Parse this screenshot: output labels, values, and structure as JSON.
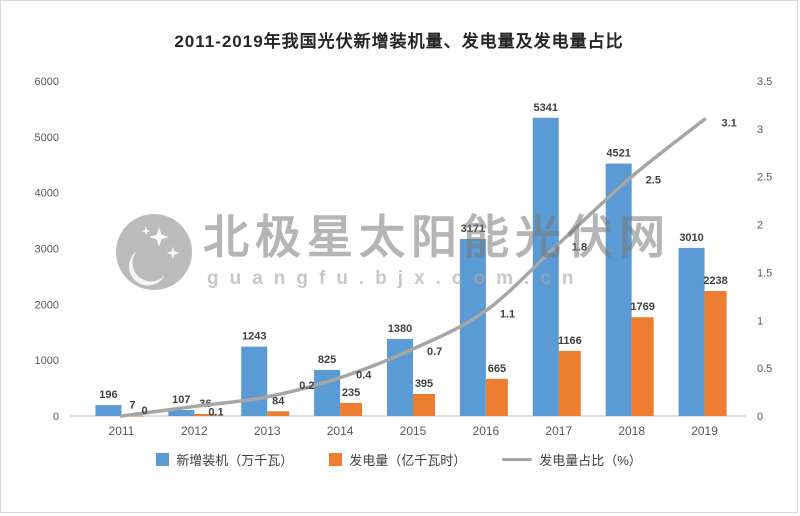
{
  "title": "2011-2019年我国光伏新增装机量、发电量及发电量占比",
  "watermark": {
    "line1": "北极星太阳能光伏网",
    "line2": "guangfu.bjx.com.cn"
  },
  "chart_data": {
    "type": "combo_bar_line",
    "title": "2011-2019年我国光伏新增装机量、发电量及发电量占比",
    "categories": [
      "2011",
      "2012",
      "2013",
      "2014",
      "2015",
      "2016",
      "2017",
      "2018",
      "2019"
    ],
    "series": [
      {
        "name": "新增装机（万千瓦）",
        "type": "bar",
        "axis": "left",
        "color": "#5B9BD5",
        "values": [
          196,
          107,
          1243,
          825,
          1380,
          3171,
          5341,
          4521,
          3010
        ]
      },
      {
        "name": "发电量（亿千瓦时）",
        "type": "bar",
        "axis": "left",
        "color": "#ED7D31",
        "values": [
          7,
          36,
          84,
          235,
          395,
          665,
          1166,
          1769,
          2238
        ]
      },
      {
        "name": "发电量占比（%）",
        "type": "line",
        "axis": "right",
        "color": "#A6A6A6",
        "values": [
          0,
          0.1,
          0.2,
          0.4,
          0.7,
          1.1,
          1.8,
          2.5,
          3.1
        ]
      }
    ],
    "left_axis": {
      "min": 0,
      "max": 6000,
      "step": 1000
    },
    "right_axis": {
      "min": 0,
      "max": 3.5,
      "step": 0.5
    },
    "grid": false,
    "legend_position": "bottom"
  }
}
